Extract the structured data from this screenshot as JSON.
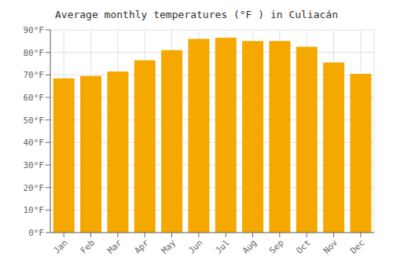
{
  "chart_data": {
    "type": "bar",
    "title": "Average monthly temperatures (°F ) in Culiacán",
    "categories": [
      "Jan",
      "Feb",
      "Mar",
      "Apr",
      "May",
      "Jun",
      "Jul",
      "Aug",
      "Sep",
      "Oct",
      "Nov",
      "Dec"
    ],
    "values": [
      68.5,
      69.5,
      71.5,
      76.5,
      81.0,
      86.0,
      86.5,
      85.0,
      85.0,
      82.5,
      75.5,
      70.5
    ],
    "color": "#F5A800",
    "ylim": [
      0,
      90
    ],
    "yticks": [
      {
        "value": 0,
        "label": "0°F"
      },
      {
        "value": 10,
        "label": "10°F"
      },
      {
        "value": 20,
        "label": "20°F"
      },
      {
        "value": 30,
        "label": "30°F"
      },
      {
        "value": 40,
        "label": "40°F"
      },
      {
        "value": 50,
        "label": "50°F"
      },
      {
        "value": 60,
        "label": "60°F"
      },
      {
        "value": 70,
        "label": "70°F"
      },
      {
        "value": 80,
        "label": "80°F"
      },
      {
        "value": 90,
        "label": "90°F"
      }
    ],
    "grid": true
  }
}
